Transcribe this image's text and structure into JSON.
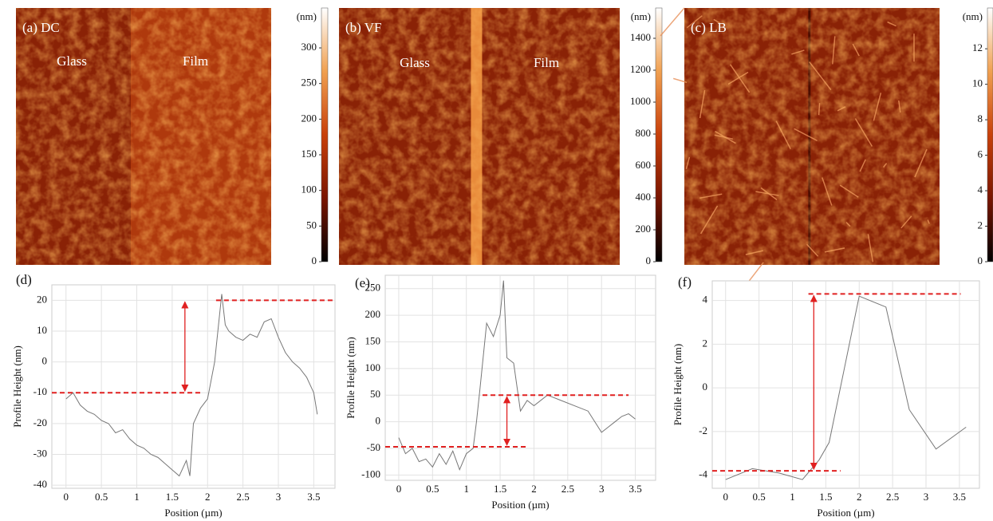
{
  "chart_data": [
    {
      "type": "heatmap",
      "panel_label": "(a) DC",
      "annotations": [
        "Glass",
        "Film"
      ],
      "colorbar_label": "(nm)",
      "colormap": [
        "#000000",
        "#7a1500",
        "#c8400a",
        "#f0a050",
        "#ffffff"
      ],
      "zlim": [
        0,
        356
      ],
      "zticks": [
        0,
        50,
        100,
        150,
        200,
        250,
        300
      ]
    },
    {
      "type": "heatmap",
      "panel_label": "(b) VF",
      "annotations": [
        "Glass",
        "Film"
      ],
      "colorbar_label": "(nm)",
      "colormap": [
        "#000000",
        "#7a1500",
        "#c8400a",
        "#f0a050",
        "#ffffff"
      ],
      "zlim": [
        0,
        1590
      ],
      "zticks": [
        0,
        200,
        400,
        600,
        800,
        1000,
        1200,
        1400
      ]
    },
    {
      "type": "heatmap",
      "panel_label": "(c) LB",
      "annotations": [],
      "colorbar_label": "(nm)",
      "colormap": [
        "#000000",
        "#7a1500",
        "#c8400a",
        "#f0a050",
        "#ffffff"
      ],
      "zlim": [
        0,
        14.3
      ],
      "zticks": [
        0,
        2,
        4,
        6,
        8,
        10,
        12
      ]
    },
    {
      "type": "line",
      "panel_label": "(d)",
      "xlabel": "Position (µm)",
      "ylabel": "Profile Height (nm)",
      "color": "#777777",
      "x": [
        0,
        0.1,
        0.2,
        0.3,
        0.4,
        0.5,
        0.6,
        0.7,
        0.8,
        0.9,
        1.0,
        1.1,
        1.2,
        1.3,
        1.4,
        1.5,
        1.6,
        1.7,
        1.75,
        1.8,
        1.9,
        2.0,
        2.1,
        2.2,
        2.25,
        2.3,
        2.4,
        2.5,
        2.6,
        2.7,
        2.8,
        2.9,
        3.0,
        3.1,
        3.2,
        3.3,
        3.4,
        3.5,
        3.55
      ],
      "values": [
        -12,
        -10,
        -14,
        -16,
        -17,
        -19,
        -20,
        -23,
        -22,
        -25,
        -27,
        -28,
        -30,
        -31,
        -33,
        -35,
        -37,
        -32,
        -37,
        -20,
        -15,
        -12,
        0,
        22,
        12,
        10,
        8,
        7,
        9,
        8,
        13,
        14,
        8,
        3,
        0,
        -2,
        -5,
        -10,
        -17
      ],
      "xlim": [
        -0.2,
        3.8
      ],
      "xticks": [
        0,
        0.5,
        1.0,
        1.5,
        2.0,
        2.5,
        3.0,
        3.5
      ],
      "ylim": [
        -41,
        25
      ],
      "yticks": [
        -40,
        -30,
        -20,
        -10,
        0,
        10,
        20
      ],
      "reference_lines": [
        20,
        -10
      ],
      "reference_color": "#e02020",
      "grid": true
    },
    {
      "type": "line",
      "panel_label": "(e)",
      "xlabel": "Position (µm)",
      "ylabel": "Profile Height (nm)",
      "color": "#777777",
      "x": [
        0,
        0.1,
        0.2,
        0.3,
        0.4,
        0.5,
        0.6,
        0.7,
        0.8,
        0.9,
        1.0,
        1.1,
        1.15,
        1.2,
        1.3,
        1.4,
        1.5,
        1.55,
        1.6,
        1.7,
        1.8,
        1.9,
        2.0,
        2.2,
        2.4,
        2.6,
        2.8,
        3.0,
        3.1,
        3.2,
        3.3,
        3.4,
        3.5
      ],
      "values": [
        -30,
        -60,
        -50,
        -75,
        -70,
        -85,
        -60,
        -80,
        -55,
        -90,
        -60,
        -50,
        0,
        60,
        185,
        160,
        200,
        265,
        120,
        110,
        20,
        40,
        30,
        50,
        40,
        30,
        20,
        -20,
        -10,
        0,
        10,
        15,
        5
      ],
      "xlim": [
        -0.2,
        3.8
      ],
      "xticks": [
        0,
        0.5,
        1.0,
        1.5,
        2.0,
        2.5,
        3.0,
        3.5
      ],
      "ylim": [
        -110,
        275
      ],
      "yticks": [
        -100,
        -50,
        0,
        50,
        100,
        150,
        200,
        250
      ],
      "reference_lines": [
        50,
        -47
      ],
      "reference_color": "#e02020",
      "grid": true
    },
    {
      "type": "line",
      "panel_label": "(f)",
      "xlabel": "Position (µm)",
      "ylabel": "Profile Height (nm)",
      "color": "#777777",
      "x": [
        0,
        0.4,
        0.8,
        1.15,
        1.4,
        1.55,
        2.0,
        2.4,
        2.75,
        3.15,
        3.6
      ],
      "values": [
        -4.2,
        -3.7,
        -3.9,
        -4.2,
        -3.3,
        -2.5,
        4.2,
        3.7,
        -1.0,
        -2.8,
        -1.8
      ],
      "xlim": [
        -0.2,
        3.8
      ],
      "xticks": [
        0,
        0.5,
        1.0,
        1.5,
        2.0,
        2.5,
        3.0,
        3.5
      ],
      "ylim": [
        -4.6,
        4.9
      ],
      "yticks": [
        -4,
        -2,
        0,
        2,
        4
      ],
      "reference_lines": [
        4.3,
        -3.8
      ],
      "reference_color": "#e02020",
      "grid": true
    }
  ]
}
